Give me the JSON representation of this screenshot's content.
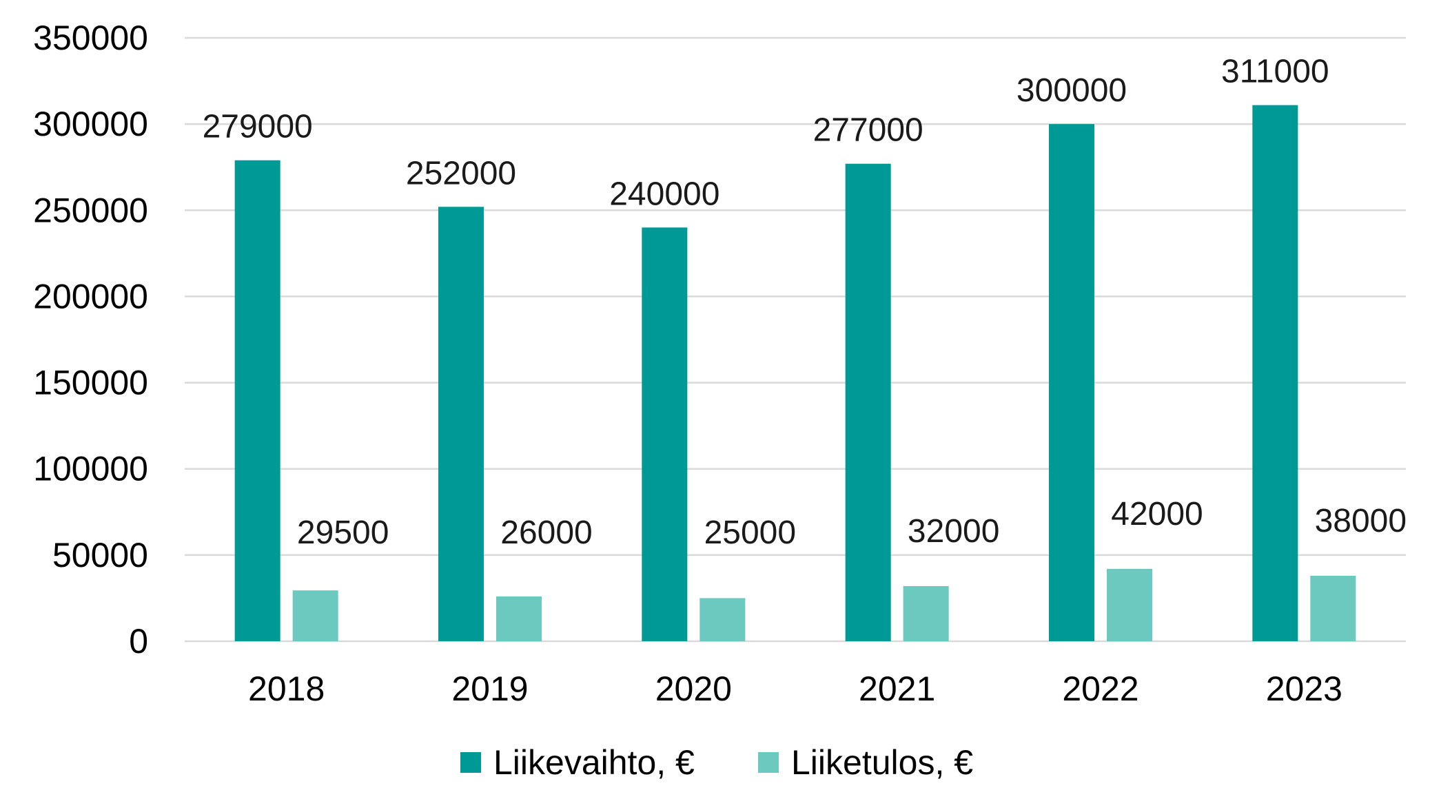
{
  "chart_data": {
    "type": "bar",
    "categories": [
      "2018",
      "2019",
      "2020",
      "2021",
      "2022",
      "2023"
    ],
    "series": [
      {
        "name": "Liikevaihto, €",
        "color": "#009a96",
        "values": [
          279000,
          252000,
          240000,
          277000,
          300000,
          311000
        ]
      },
      {
        "name": "Liiketulos, €",
        "color": "#6bc9bf",
        "values": [
          29500,
          26000,
          25000,
          32000,
          42000,
          38000
        ]
      }
    ],
    "ylim": [
      0,
      350000
    ],
    "yticks": [
      0,
      50000,
      100000,
      150000,
      200000,
      250000,
      300000,
      350000
    ],
    "grid": true,
    "legend_position": "bottom",
    "data_labels": true
  }
}
